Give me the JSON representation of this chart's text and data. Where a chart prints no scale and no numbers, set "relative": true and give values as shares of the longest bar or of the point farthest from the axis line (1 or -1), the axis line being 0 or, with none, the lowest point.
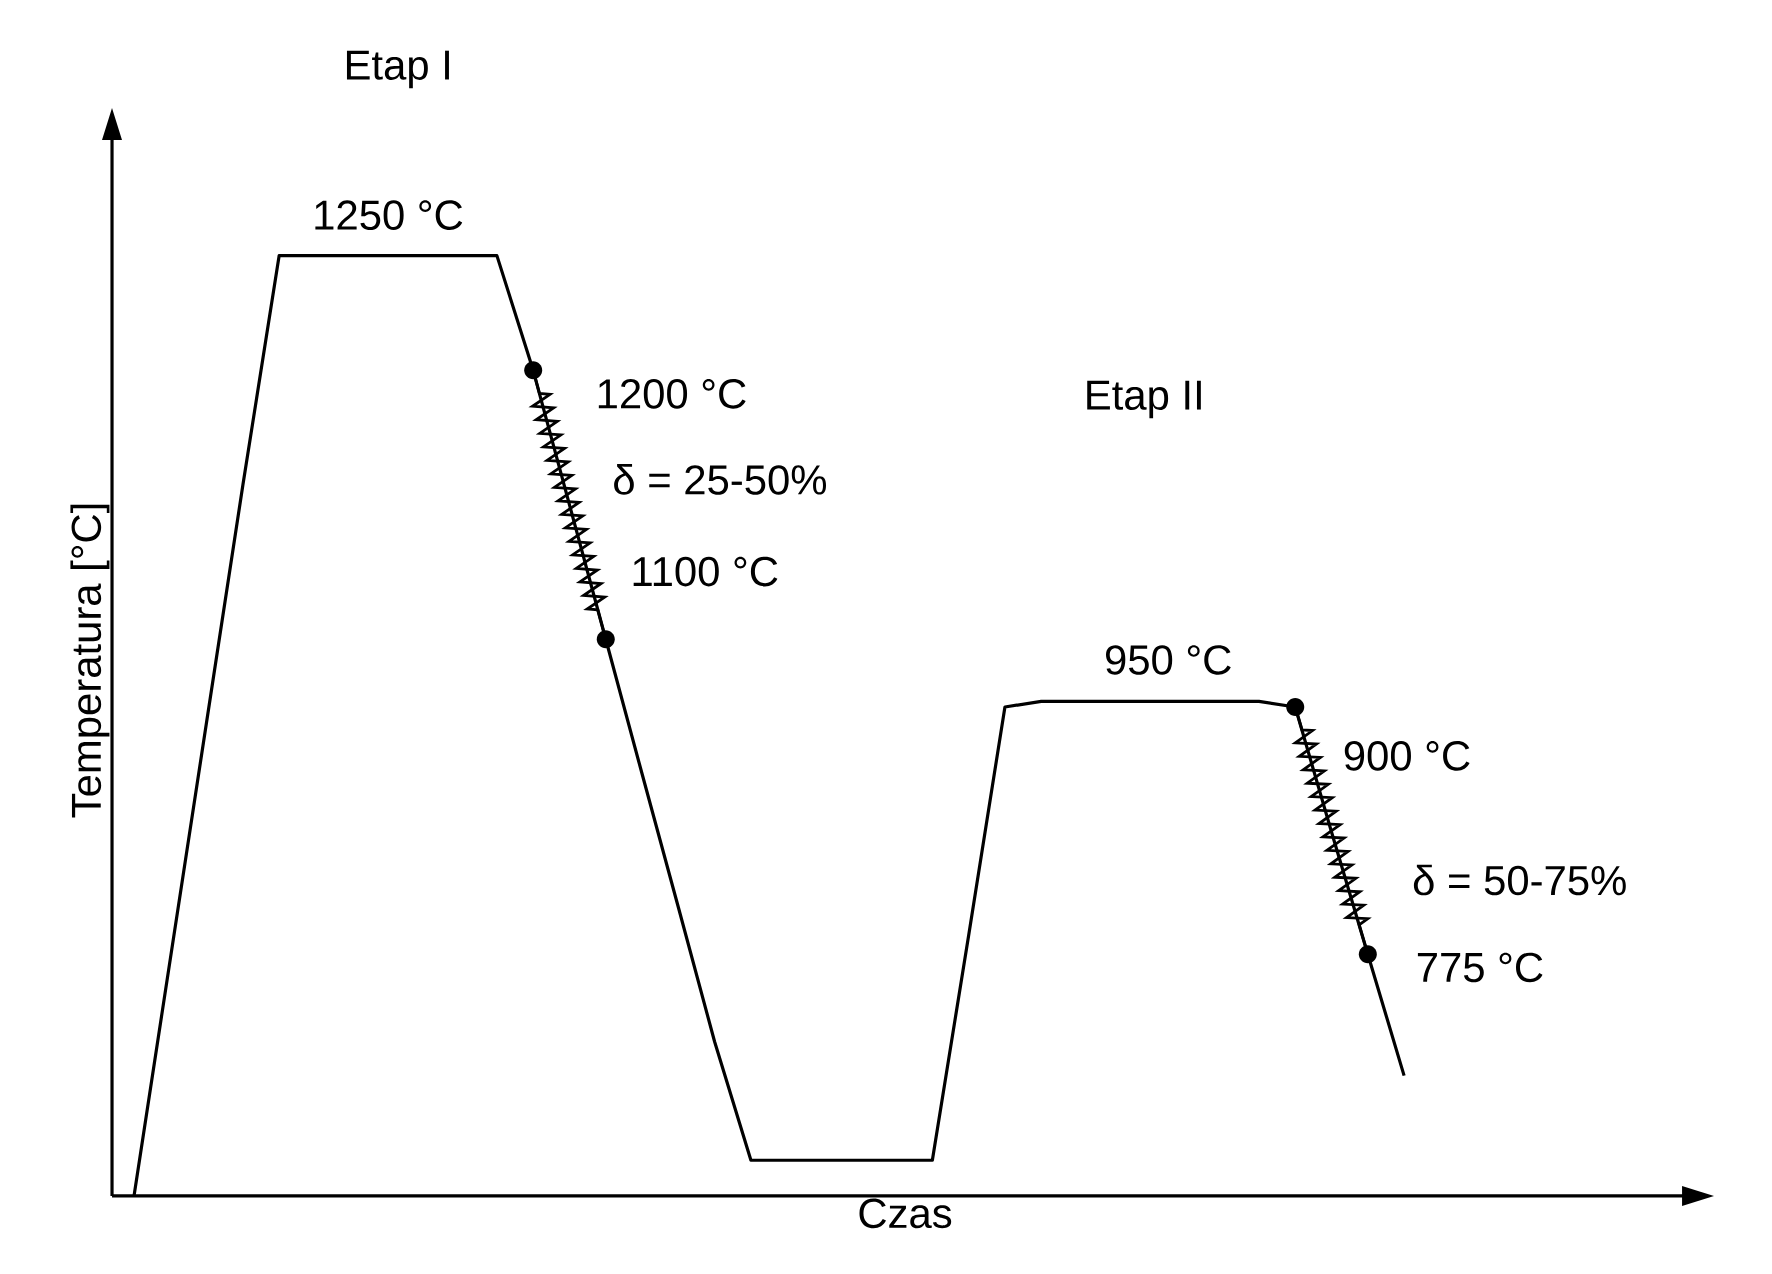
{
  "chart_data": {
    "type": "line",
    "relative": true,
    "xlabel": "Czas",
    "ylabel": "Temperatura [°C]",
    "categories": [
      null,
      null,
      null,
      null,
      null,
      null,
      null,
      null,
      null,
      null,
      null,
      null,
      null,
      null,
      null,
      null,
      null,
      null,
      null,
      null,
      null,
      null,
      null,
      null,
      null,
      null,
      null,
      null,
      null,
      null,
      null,
      null,
      null,
      null,
      null,
      null
    ],
    "series": [
      {
        "color": "#000000",
        "values": [
          0,
          0.252,
          0.504,
          0.756,
          1,
          1,
          1,
          1,
          1,
          1,
          1,
          0.878,
          0.735,
          0.592,
          0.449,
          0.307,
          0.164,
          0.038,
          0.038,
          0.038,
          0.038,
          0.038,
          0.038,
          0.277,
          0.52,
          0.526,
          0.526,
          0.526,
          0.526,
          0.526,
          0.526,
          0.526,
          0.52,
          0.387,
          0.257,
          0.128
        ]
      }
    ],
    "annotations": [
      "Etap I",
      "1250 °C",
      "1200 °C",
      "δ = 25-50%",
      "1100 °C",
      "Etap II",
      "950 °C",
      "900 °C",
      "δ = 50-75%",
      "775 °C"
    ]
  }
}
